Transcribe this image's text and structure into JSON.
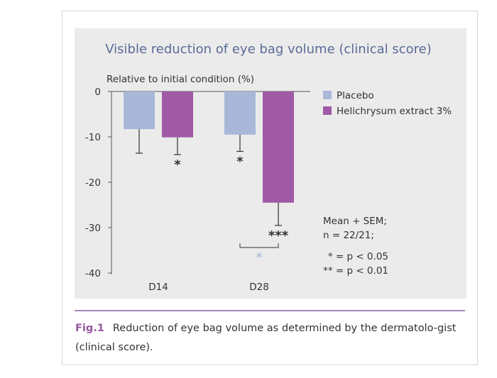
{
  "chart_data": {
    "type": "bar",
    "title": "Visible reduction of eye bag volume (clinical score)",
    "ylabel": "Relative to initial condition (%)",
    "xlabel": "",
    "categories": [
      "D14",
      "D28"
    ],
    "ylim": [
      -40,
      0
    ],
    "yticks": [
      0,
      -10,
      -20,
      -30,
      -40
    ],
    "grid": false,
    "legend_position": "top-right",
    "series": [
      {
        "name": "Placebo",
        "color": "#a9b8d9",
        "values": [
          -8.3,
          -9.5
        ],
        "errors": [
          5.3,
          3.7
        ],
        "significance": [
          "",
          "*"
        ]
      },
      {
        "name": "Helichrysum extract 3%",
        "color": "#a05aa5",
        "values": [
          -10.1,
          -24.5
        ],
        "errors": [
          3.8,
          5.0
        ],
        "significance": [
          "*",
          "***"
        ]
      }
    ],
    "comparison": {
      "between": "D28 Placebo vs Helichrysum extract 3%",
      "label": "*"
    },
    "stats_note": [
      "Mean + SEM;",
      "n = 22/21;"
    ],
    "significance_key": [
      "* = p < 0.05",
      "** = p < 0.01"
    ]
  },
  "caption": {
    "label": "Fig.1",
    "text": "Reduction of eye bag volume as determined by the dermatolo-gist (clinical score)."
  }
}
